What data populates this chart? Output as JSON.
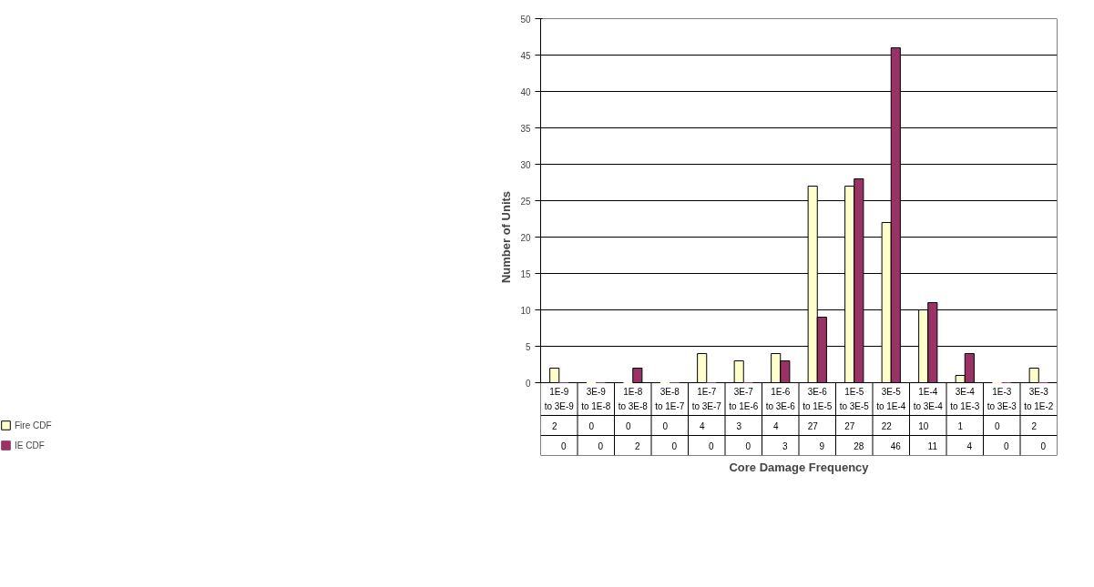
{
  "chart_data": {
    "type": "bar",
    "xlabel": "Core Damage Frequency",
    "ylabel": "Number of Units",
    "categories": [
      "1E-9\nto 3E-9",
      "3E-9\nto 1E-8",
      "1E-8\nto 3E-8",
      "3E-8\nto 1E-7",
      "1E-7\nto 3E-7",
      "3E-7\nto 1E-6",
      "1E-6\nto 3E-6",
      "3E-6\nto 1E-5",
      "1E-5\nto 3E-5",
      "3E-5\nto 1E-4",
      "1E-4\nto 3E-4",
      "3E-4\nto 1E-3",
      "1E-3\nto 3E-3",
      "3E-3\nto 1E-2"
    ],
    "series": [
      {
        "name": "Fire CDF",
        "color": "#ffffcc",
        "values": [
          2,
          0,
          0,
          0,
          4,
          3,
          4,
          27,
          27,
          22,
          10,
          1,
          0,
          2
        ]
      },
      {
        "name": "IE CDF",
        "color": "#993366",
        "values": [
          0,
          0,
          2,
          0,
          0,
          0,
          3,
          9,
          28,
          46,
          11,
          4,
          0,
          0
        ]
      }
    ],
    "ylim": [
      0,
      50
    ],
    "yticks": [
      0,
      5,
      10,
      15,
      20,
      25,
      30,
      35,
      40,
      45,
      50
    ],
    "grid": "y",
    "legend": "bottom",
    "data_labels": true
  }
}
